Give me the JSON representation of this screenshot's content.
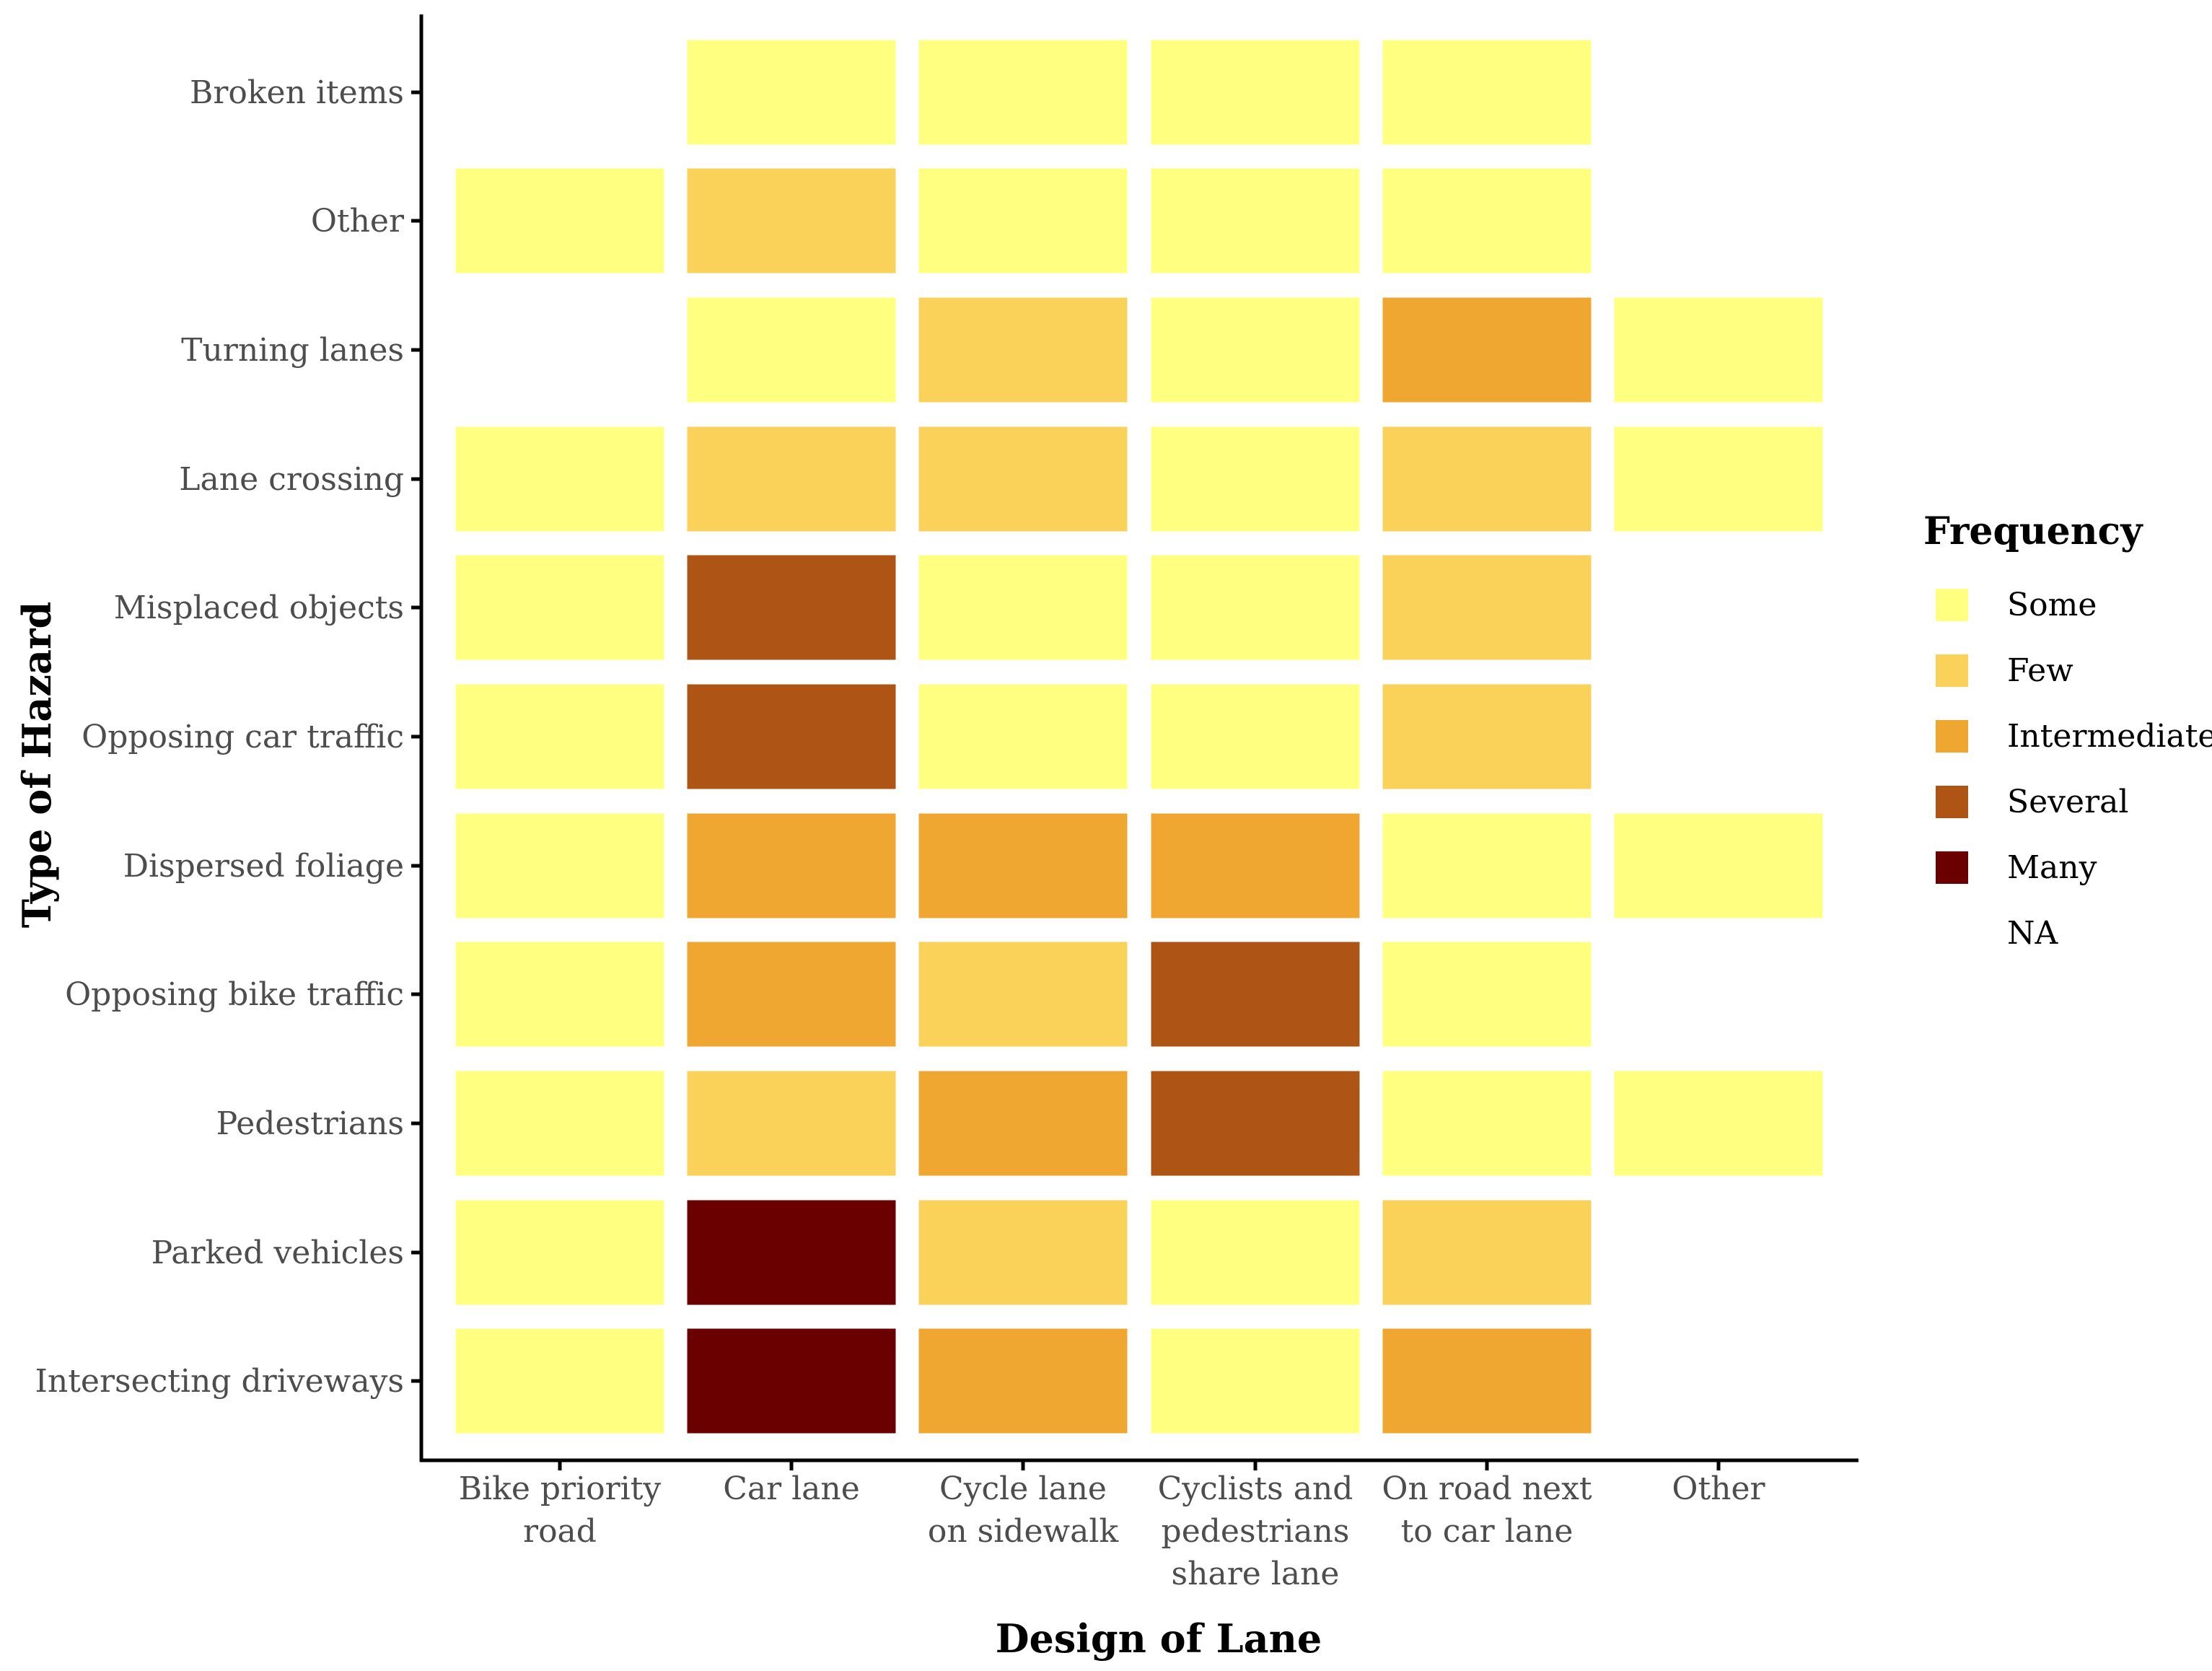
{
  "chart_data": {
    "type": "heatmap",
    "title": "",
    "xlabel": "Design of Lane",
    "ylabel": "Type of Hazard",
    "x_categories": [
      [
        "Bike priority",
        "road"
      ],
      [
        "Car lane"
      ],
      [
        "Cycle lane",
        "on sidewalk"
      ],
      [
        "Cyclists and",
        "pedestrians",
        "share lane"
      ],
      [
        "On road next",
        "to car lane"
      ],
      [
        "Other"
      ]
    ],
    "y_categories": [
      "Broken items",
      "Other",
      "Turning lanes",
      "Lane crossing",
      "Misplaced objects",
      "Opposing car traffic",
      "Dispersed foliage",
      "Opposing bike traffic",
      "Pedestrians",
      "Parked vehicles",
      "Intersecting driveways"
    ],
    "values": [
      [
        "NA",
        "Some",
        "Some",
        "Some",
        "Some",
        "NA"
      ],
      [
        "Some",
        "Few",
        "Some",
        "Some",
        "Some",
        "NA"
      ],
      [
        "NA",
        "Some",
        "Few",
        "Some",
        "Intermediate",
        "Some"
      ],
      [
        "Some",
        "Few",
        "Few",
        "Some",
        "Few",
        "Some"
      ],
      [
        "Some",
        "Several",
        "Some",
        "Some",
        "Few",
        "NA"
      ],
      [
        "Some",
        "Several",
        "Some",
        "Some",
        "Few",
        "NA"
      ],
      [
        "Some",
        "Intermediate",
        "Intermediate",
        "Intermediate",
        "Some",
        "Some"
      ],
      [
        "Some",
        "Intermediate",
        "Few",
        "Several",
        "Some",
        "NA"
      ],
      [
        "Some",
        "Few",
        "Intermediate",
        "Several",
        "Some",
        "Some"
      ],
      [
        "Some",
        "Many",
        "Few",
        "Some",
        "Few",
        "NA"
      ],
      [
        "Some",
        "Many",
        "Intermediate",
        "Some",
        "Intermediate",
        "NA"
      ]
    ],
    "legend": {
      "title": "Frequency",
      "position": "right",
      "items": [
        {
          "label": "Some",
          "color": "#FFFF80"
        },
        {
          "label": "Few",
          "color": "#FAD25A"
        },
        {
          "label": "Intermediate",
          "color": "#F0A732"
        },
        {
          "label": "Several",
          "color": "#AE5415"
        },
        {
          "label": "Many",
          "color": "#6B0000"
        },
        {
          "label": "NA",
          "color": "none"
        }
      ]
    }
  }
}
